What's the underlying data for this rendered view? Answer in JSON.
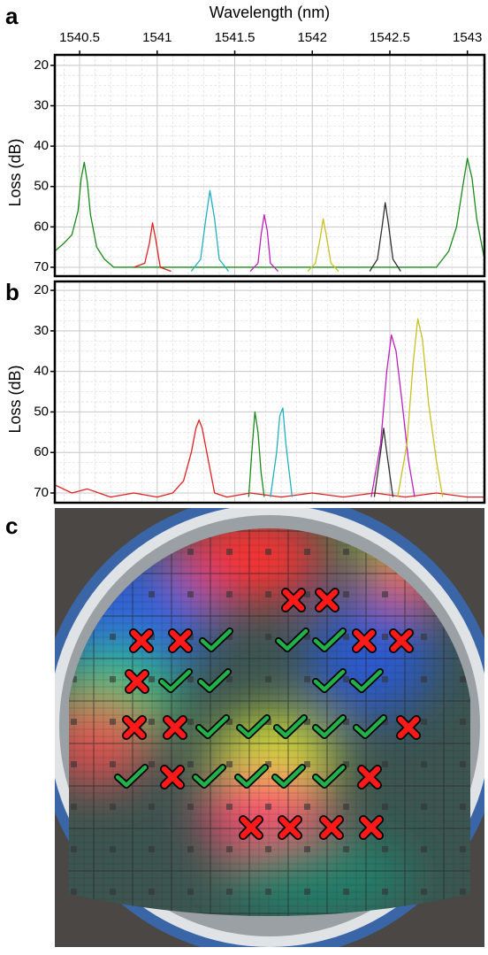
{
  "chart_data": [
    {
      "type": "line",
      "panel_label": "a",
      "xlabel": "Wavelength (nm)",
      "ylabel": "Loss (dB)",
      "xlim": [
        1540.34,
        1543.11
      ],
      "ylim": [
        17.4,
        72.2
      ],
      "y_inverted": true,
      "xticks": [
        1540.5,
        1541,
        1541.5,
        1542,
        1542.5,
        1543
      ],
      "show_xtick_labels": true,
      "yticks": [
        20,
        30,
        40,
        50,
        60,
        70
      ],
      "grid": true,
      "series": [
        {
          "color": "#1a8a1a",
          "x": [
            1540.34,
            1540.4,
            1540.45,
            1540.49,
            1540.51,
            1540.53,
            1540.55,
            1540.57,
            1540.61,
            1540.66,
            1540.72,
            1542.8,
            1542.88,
            1542.93,
            1542.97,
            1543.0,
            1543.03,
            1543.06,
            1543.11
          ],
          "values": [
            66,
            64,
            62,
            56,
            48,
            44,
            49,
            57,
            65,
            68,
            70,
            70,
            66,
            60,
            50,
            43,
            48,
            58,
            68
          ]
        },
        {
          "color": "#e02020",
          "x": [
            1540.85,
            1540.92,
            1540.95,
            1540.97,
            1540.99,
            1541.02,
            1541.09
          ],
          "values": [
            70,
            69,
            64,
            59,
            63,
            70,
            71
          ]
        },
        {
          "color": "#20b0c0",
          "x": [
            1541.22,
            1541.28,
            1541.31,
            1541.34,
            1541.37,
            1541.4,
            1541.46
          ],
          "values": [
            71,
            68,
            59,
            51,
            58,
            68,
            71
          ]
        },
        {
          "color": "#c020c0",
          "x": [
            1541.6,
            1541.65,
            1541.67,
            1541.69,
            1541.71,
            1541.73,
            1541.78
          ],
          "values": [
            71,
            69,
            62,
            57,
            61,
            69,
            71
          ]
        },
        {
          "color": "#c8c020",
          "x": [
            1541.97,
            1542.02,
            1542.05,
            1542.07,
            1542.09,
            1542.12,
            1542.17
          ],
          "values": [
            71,
            69,
            63,
            58,
            62,
            69,
            71
          ]
        },
        {
          "color": "#303030",
          "x": [
            1542.37,
            1542.42,
            1542.45,
            1542.47,
            1542.49,
            1542.52,
            1542.57
          ],
          "values": [
            71,
            68,
            60,
            54,
            59,
            68,
            71
          ]
        }
      ]
    },
    {
      "type": "line",
      "panel_label": "b",
      "ylabel": "Loss (dB)",
      "xlim": [
        1540.34,
        1543.11
      ],
      "ylim": [
        17.8,
        72.4
      ],
      "y_inverted": true,
      "xticks": [
        1540.5,
        1541,
        1541.5,
        1542,
        1542.5,
        1543
      ],
      "show_xtick_labels": false,
      "yticks": [
        20,
        30,
        40,
        50,
        60,
        70
      ],
      "grid": true,
      "series": [
        {
          "color": "#e02020",
          "x": [
            1540.34,
            1540.45,
            1540.55,
            1540.7,
            1540.85,
            1541.0,
            1541.1,
            1541.17,
            1541.22,
            1541.25,
            1541.27,
            1541.29,
            1541.32,
            1541.37,
            1541.45,
            1541.6,
            1541.8,
            1542.0,
            1542.2,
            1542.4,
            1542.6,
            1542.8,
            1543.0,
            1543.11
          ],
          "values": [
            68,
            70,
            69,
            71,
            70,
            71,
            70,
            67,
            60,
            54,
            52,
            54,
            60,
            70,
            71,
            70,
            71,
            70,
            71,
            70,
            71,
            70,
            71,
            71
          ]
        },
        {
          "color": "#1a8a1a",
          "x": [
            1541.59,
            1541.61,
            1541.63,
            1541.65,
            1541.67,
            1541.69
          ],
          "values": [
            71,
            60,
            50,
            55,
            65,
            71
          ]
        },
        {
          "color": "#20b0c0",
          "x": [
            1541.73,
            1541.77,
            1541.79,
            1541.81,
            1541.83,
            1541.87
          ],
          "values": [
            71,
            60,
            51,
            49,
            58,
            71
          ]
        },
        {
          "color": "#303030",
          "x": [
            1542.4,
            1542.44,
            1542.46,
            1542.48,
            1542.52
          ],
          "values": [
            71,
            60,
            54,
            60,
            71
          ]
        },
        {
          "color": "#c020c0",
          "x": [
            1542.38,
            1542.44,
            1542.48,
            1542.51,
            1542.54,
            1542.58,
            1542.62,
            1542.66
          ],
          "values": [
            71,
            58,
            40,
            31,
            35,
            48,
            62,
            71
          ]
        },
        {
          "color": "#c8c020",
          "x": [
            1542.55,
            1542.61,
            1542.65,
            1542.68,
            1542.71,
            1542.75,
            1542.8,
            1542.84
          ],
          "values": [
            71,
            58,
            38,
            27,
            32,
            48,
            62,
            71
          ]
        }
      ]
    }
  ],
  "photo": {
    "panel_label": "c"
  }
}
